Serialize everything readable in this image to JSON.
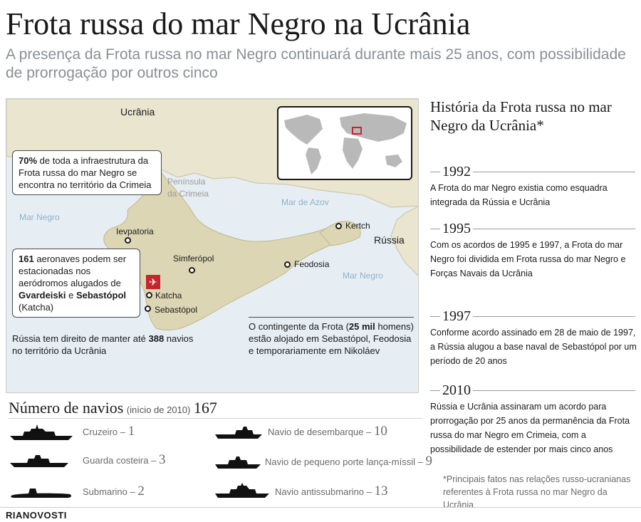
{
  "header": {
    "title": "Frota russa do mar Negro na Ucrânia",
    "subtitle": "A presença da Frota russa no mar Negro continuará durante mais 25 anos, com possibilidade de prorrogação por outros cinco"
  },
  "map": {
    "labels": {
      "ukraine": "Ucrânia",
      "peninsula_line1": "Península",
      "peninsula_line2": "da Crimeia",
      "azov": "Mar de Azov",
      "black_sea_west": "Mar Negro",
      "black_sea_east": "Mar Negro",
      "russia": "Rússia"
    },
    "cities": {
      "kerch": "Kertch",
      "ievpatoria": "Ievpatoria",
      "simferopol": "Simferópol",
      "feodosia": "Feodosia",
      "katcha": "Katcha",
      "sebastopol": "Sebastópol"
    },
    "callout_infra": {
      "bold": "70%",
      "text": " de toda a infraestrutura da Frota russa do mar Negro se encontra no território da Crimeia"
    },
    "callout_aircraft": {
      "bold1": "161",
      "text1": " aeronaves podem ser estacionadas nos aeródromos alugados de ",
      "bold2": "Gvardeiski",
      "text2": " e ",
      "bold3": "Sebastópol",
      "text3": " (Katcha)"
    },
    "note_russia": {
      "text1": "Rússia tem direito de manter até ",
      "bold": "388",
      "text2": " navios no território da Ucrânia"
    },
    "note_contingent": {
      "text1": "O contingente da Frota (",
      "bold": "25 mil",
      "text2": " homens) estão alojado em Sebastópol, Feodosia e temporariamente em Nikoláev"
    },
    "colors": {
      "sea": "#e6eef4",
      "land": "#e9e5cf",
      "crimea": "#dcd6b4",
      "inset_land": "#b9b9b9",
      "inset_marker": "#c3262f"
    }
  },
  "ships": {
    "title": "Número de navios",
    "subtitle": "(início de 2010)",
    "total": "167",
    "items": [
      {
        "label": "Cruzeiro",
        "dash": " – ",
        "count": "1",
        "icon": "cruiser-icon"
      },
      {
        "label": "Guarda costeira",
        "dash": " – ",
        "count": "3",
        "icon": "coast-guard-icon"
      },
      {
        "label": "Submarino",
        "dash": " – ",
        "count": "2",
        "icon": "submarine-icon"
      },
      {
        "label": "Navio de desembarque",
        "dash": " – ",
        "count": "10",
        "icon": "landing-ship-icon"
      },
      {
        "label": "Navio de pequeno porte lança-míssil",
        "dash": " – ",
        "count": "9",
        "icon": "missile-boat-icon"
      },
      {
        "label": "Navio antissubmarino",
        "dash": " – ",
        "count": "13",
        "icon": "antisubmarine-ship-icon"
      }
    ]
  },
  "history": {
    "title": "História da Frota russa no mar Negro da Ucrânia*",
    "events": [
      {
        "year": "1992",
        "text": "A Frota do mar Negro existia como esquadra integrada da Rússia e Ucrânia"
      },
      {
        "year": "1995",
        "text": "Com os acordos de 1995 e 1997, a Frota do mar Negro foi dividida em Frota russa do mar Negro e Forças Navais da Ucrânia"
      },
      {
        "year": "1997",
        "text": "Conforme acordo assinado em 28 de maio de 1997, a Rússia alugou a base naval de Sebastópol por um período de 20 anos"
      },
      {
        "year": "2010",
        "text": "Rússia e Ucrânia assinaram um acordo para prorrogação por 25 anos da permanência da Frota russa do mar Negro em Crimeia, com a possibilidade de estender por mais cinco anos"
      }
    ],
    "footnote": "*Principais fatos nas relações russo-ucranianas referentes à Frota russa no mar Negro da Ucrânia"
  },
  "footer": {
    "logo_ria": "RIA",
    "logo_novosti": "NOVOSTI"
  }
}
